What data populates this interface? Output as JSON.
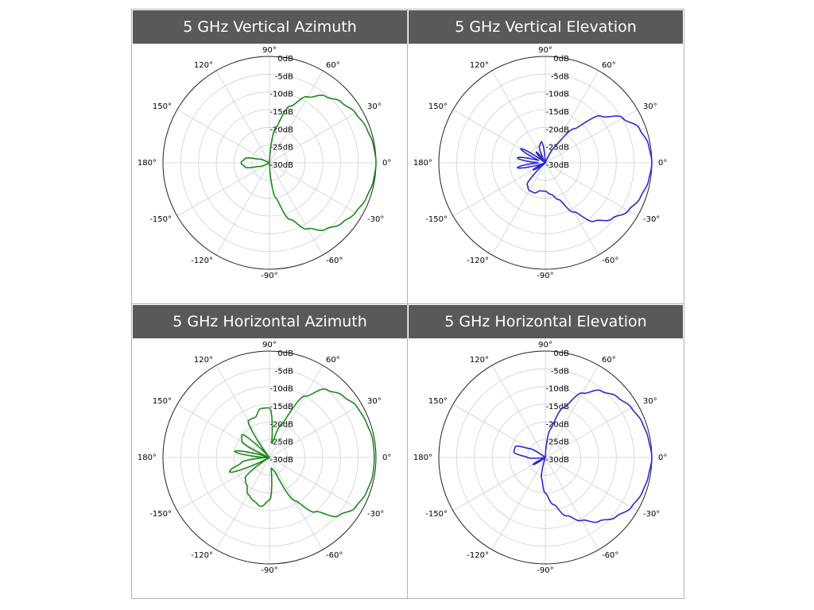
{
  "chart_data": [
    {
      "type": "polar",
      "title": "5 GHz Vertical Azimuth",
      "color": "#1a8a1a",
      "angle_labels": [
        "0°",
        "30°",
        "60°",
        "90°",
        "120°",
        "150°",
        "180°",
        "-150°",
        "-120°",
        "-90°",
        "-60°",
        "-30°"
      ],
      "radial_labels": [
        "0dB",
        "-5dB",
        "-10dB",
        "-15dB",
        "-20dB",
        "-25dB",
        "-30dB"
      ],
      "rlim": [
        -30,
        0
      ],
      "grid": true,
      "angles_deg": [
        0,
        10,
        20,
        30,
        40,
        50,
        60,
        70,
        80,
        90,
        100,
        110,
        120,
        130,
        140,
        150,
        160,
        170,
        180,
        190,
        200,
        210,
        220,
        230,
        240,
        250,
        260,
        270,
        280,
        290,
        300,
        310,
        320,
        330,
        340,
        350
      ],
      "gain_db": [
        0,
        -0.3,
        -1,
        -2,
        -3.5,
        -5.5,
        -8.5,
        -13,
        -20,
        -30,
        -30,
        -30,
        -30,
        -30,
        -30,
        -30,
        -27,
        -23,
        -22,
        -23,
        -27,
        -30,
        -30,
        -30,
        -30,
        -30,
        -30,
        -30,
        -20,
        -13,
        -8.5,
        -5.5,
        -3.5,
        -2,
        -1,
        -0.3
      ]
    },
    {
      "type": "polar",
      "title": "5 GHz Vertical Elevation",
      "color": "#2a2ad0",
      "angle_labels": [
        "0°",
        "30°",
        "60°",
        "90°",
        "120°",
        "150°",
        "180°",
        "-150°",
        "-120°",
        "-90°",
        "-60°",
        "-30°"
      ],
      "radial_labels": [
        "0dB",
        "-5dB",
        "-10dB",
        "-15dB",
        "-20dB",
        "-25dB",
        "-30dB"
      ],
      "rlim": [
        -30,
        0
      ],
      "grid": true,
      "angles_deg": [
        0,
        10,
        20,
        30,
        40,
        50,
        60,
        70,
        80,
        90,
        100,
        110,
        120,
        130,
        140,
        150,
        160,
        170,
        180,
        190,
        200,
        210,
        220,
        230,
        240,
        250,
        260,
        270,
        280,
        290,
        300,
        310,
        320,
        330,
        340,
        350
      ],
      "gain_db": [
        0,
        -0.5,
        -1.8,
        -4.8,
        -9.5,
        -17.5,
        -25,
        -30,
        -30,
        -30,
        -24,
        -25,
        -30,
        -26,
        -30,
        -22,
        -28,
        -22,
        -28,
        -22,
        -30,
        -26,
        -30,
        -22,
        -21,
        -21,
        -22,
        -22,
        -21,
        -19,
        -14,
        -8.5,
        -5.5,
        -3,
        -1.5,
        -0.5
      ]
    },
    {
      "type": "polar",
      "title": "5 GHz Horizontal Azimuth",
      "color": "#1a8a1a",
      "angle_labels": [
        "0°",
        "30°",
        "60°",
        "90°",
        "120°",
        "150°",
        "180°",
        "-150°",
        "-120°",
        "-90°",
        "-60°",
        "-30°"
      ],
      "radial_labels": [
        "0dB",
        "-5dB",
        "-10dB",
        "-15dB",
        "-20dB",
        "-25dB",
        "-30dB"
      ],
      "rlim": [
        -30,
        0
      ],
      "grid": true,
      "angles_deg": [
        0,
        10,
        20,
        30,
        40,
        50,
        60,
        70,
        80,
        90,
        100,
        110,
        120,
        130,
        140,
        150,
        160,
        170,
        180,
        190,
        200,
        210,
        220,
        230,
        240,
        250,
        260,
        270,
        280,
        290,
        300,
        310,
        320,
        330,
        340,
        350
      ],
      "gain_db": [
        -0.5,
        -0.5,
        -1,
        -1.5,
        -3,
        -5,
        -10,
        -20,
        -26,
        -16,
        -16,
        -18,
        -18,
        -30,
        -20,
        -21,
        -30,
        -20,
        -30,
        -22,
        -18,
        -30,
        -21,
        -20,
        -18,
        -17,
        -16,
        -18,
        -27,
        -26,
        -16,
        -10,
        -4.5,
        -2,
        -1,
        -0.5
      ]
    },
    {
      "type": "polar",
      "title": "5 GHz Horizontal Elevation",
      "color": "#2a2ad0",
      "angle_labels": [
        "0°",
        "30°",
        "60°",
        "90°",
        "120°",
        "150°",
        "180°",
        "-150°",
        "-120°",
        "-90°",
        "-60°",
        "-30°"
      ],
      "radial_labels": [
        "0dB",
        "-5dB",
        "-10dB",
        "-15dB",
        "-20dB",
        "-25dB",
        "-30dB"
      ],
      "rlim": [
        -30,
        0
      ],
      "grid": true,
      "angles_deg": [
        0,
        10,
        20,
        30,
        40,
        50,
        60,
        70,
        80,
        90,
        100,
        110,
        120,
        130,
        140,
        150,
        160,
        170,
        180,
        190,
        200,
        210,
        220,
        230,
        240,
        250,
        260,
        270,
        280,
        290,
        300,
        310,
        320,
        330,
        340,
        350
      ],
      "gain_db": [
        0,
        -0.5,
        -1,
        -2,
        -3.5,
        -5.5,
        -9,
        -15,
        -22,
        -30,
        -30,
        -30,
        -30,
        -30,
        -30,
        -25,
        -21,
        -21,
        -25,
        -30,
        -30,
        -26,
        -30,
        -30,
        -30,
        -30,
        -24,
        -20,
        -16.5,
        -12.5,
        -9.5,
        -6.5,
        -4,
        -2,
        -1,
        -0.5
      ]
    }
  ]
}
